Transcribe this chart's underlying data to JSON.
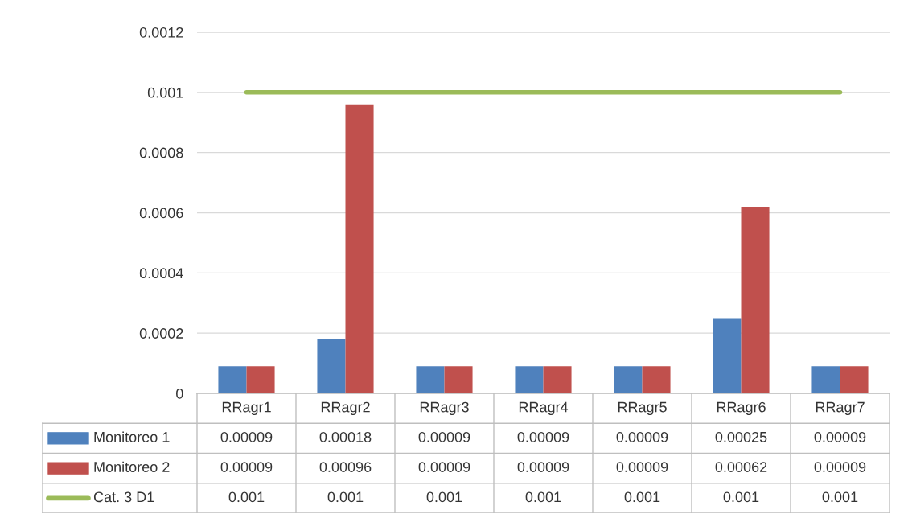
{
  "chart_data": {
    "type": "bar",
    "categories": [
      "RRagr1",
      "RRagr2",
      "RRagr3",
      "RRagr4",
      "RRagr5",
      "RRagr6",
      "RRagr7"
    ],
    "series": [
      {
        "name": "Monitoreo 1",
        "color": "#4f81bd",
        "values": [
          9e-05,
          0.00018,
          9e-05,
          9e-05,
          9e-05,
          0.00025,
          9e-05
        ],
        "value_labels": [
          "0.00009",
          "0.00018",
          "0.00009",
          "0.00009",
          "0.00009",
          "0.00025",
          "0.00009"
        ]
      },
      {
        "name": "Monitoreo 2",
        "color": "#c0504d",
        "values": [
          9e-05,
          0.00096,
          9e-05,
          9e-05,
          9e-05,
          0.00062,
          9e-05
        ],
        "value_labels": [
          "0.00009",
          "0.00096",
          "0.00009",
          "0.00009",
          "0.00009",
          "0.00062",
          "0.00009"
        ]
      },
      {
        "name": "Cat. 3 D1",
        "type": "line",
        "color": "#9bbb59",
        "values": [
          0.001,
          0.001,
          0.001,
          0.001,
          0.001,
          0.001,
          0.001
        ],
        "value_labels": [
          "0.001",
          "0.001",
          "0.001",
          "0.001",
          "0.001",
          "0.001",
          "0.001"
        ]
      }
    ],
    "ylim": [
      0,
      0.0012
    ],
    "yticks": [
      0,
      0.0002,
      0.0004,
      0.0006,
      0.0008,
      0.001,
      0.0012
    ],
    "grid": "y",
    "legend": "bottom"
  }
}
